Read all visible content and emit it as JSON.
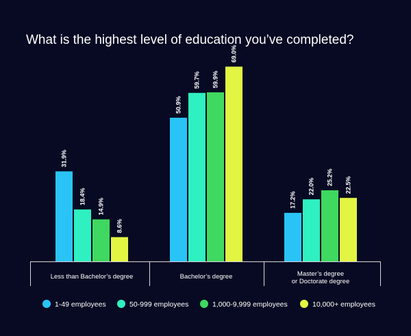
{
  "chart_data": {
    "type": "bar",
    "title": "What is the highest level of education you’ve completed?",
    "categories": [
      [
        "Less than Bachelor’s degree"
      ],
      [
        "Bachelor’s degree"
      ],
      [
        "Master’s degree",
        "or Doctorate degree"
      ]
    ],
    "series": [
      {
        "name": "1-49 employees",
        "color": "#29c4f5",
        "values": [
          31.9,
          50.9,
          17.2
        ],
        "labels": [
          "31.9%",
          "50.9%",
          "17.2%"
        ]
      },
      {
        "name": "50-999 employees",
        "color": "#2ff0c0",
        "values": [
          18.4,
          59.7,
          22.0
        ],
        "labels": [
          "18.4%",
          "59.7%",
          "22.0%"
        ]
      },
      {
        "name": "1,000-9,999 employees",
        "color": "#3fd860",
        "values": [
          14.9,
          59.9,
          25.2
        ],
        "labels": [
          "14.9%",
          "59.9%",
          "25.2%"
        ]
      },
      {
        "name": "10,000+ employees",
        "color": "#e2f542",
        "values": [
          8.6,
          69.0,
          22.5
        ],
        "labels": [
          "8.6%",
          "69.0%",
          "22.5%"
        ]
      }
    ],
    "ylim": [
      0,
      80
    ],
    "grid": false,
    "legend": "bottom"
  }
}
